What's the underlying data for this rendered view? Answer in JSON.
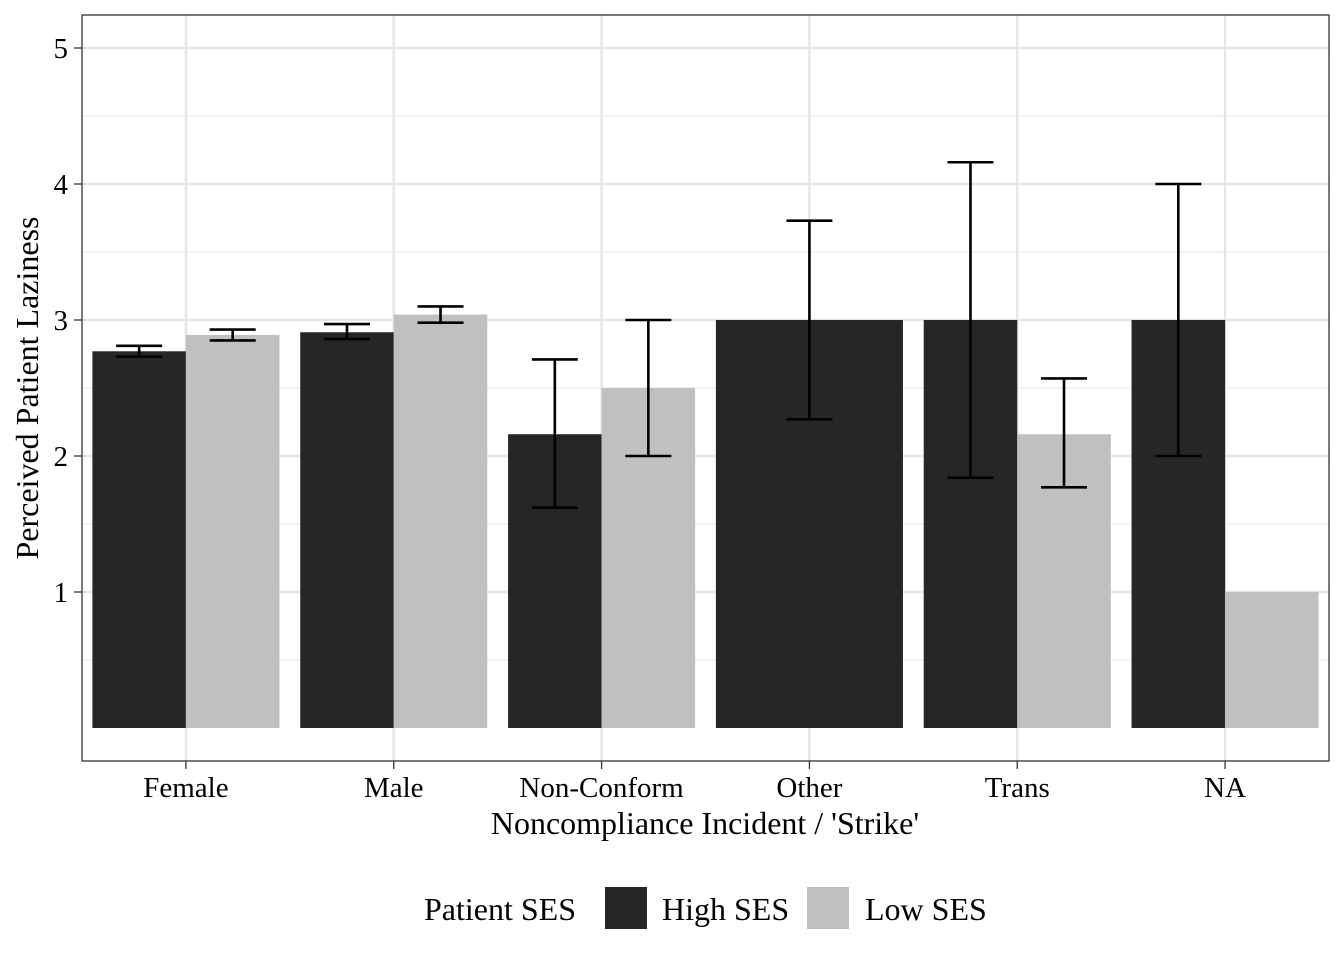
{
  "chart_data": {
    "type": "bar",
    "title": "",
    "xlabel": "Noncompliance Incident / 'Strike'",
    "ylabel": "Perceived Patient Laziness",
    "categories": [
      "Female",
      "Male",
      "Non-Conform",
      "Other",
      "Trans",
      "NA"
    ],
    "ylim": [
      0,
      5.2
    ],
    "yticks": [
      1,
      2,
      3,
      4,
      5
    ],
    "grid": true,
    "legend": {
      "title": "Patient SES",
      "position": "bottom"
    },
    "series": [
      {
        "name": "High SES",
        "color": "#262626",
        "values": [
          2.77,
          2.91,
          2.16,
          3.0,
          3.0,
          3.0
        ],
        "error_low": [
          2.73,
          2.86,
          1.62,
          2.27,
          1.84,
          2.0
        ],
        "error_high": [
          2.81,
          2.97,
          2.71,
          3.73,
          4.16,
          4.0
        ]
      },
      {
        "name": "Low SES",
        "color": "#c0c0c0",
        "values": [
          2.89,
          3.04,
          2.5,
          null,
          2.16,
          1.0
        ],
        "error_low": [
          2.85,
          2.98,
          2.0,
          null,
          1.77,
          null
        ],
        "error_high": [
          2.93,
          3.1,
          3.0,
          null,
          2.57,
          null
        ]
      }
    ]
  }
}
